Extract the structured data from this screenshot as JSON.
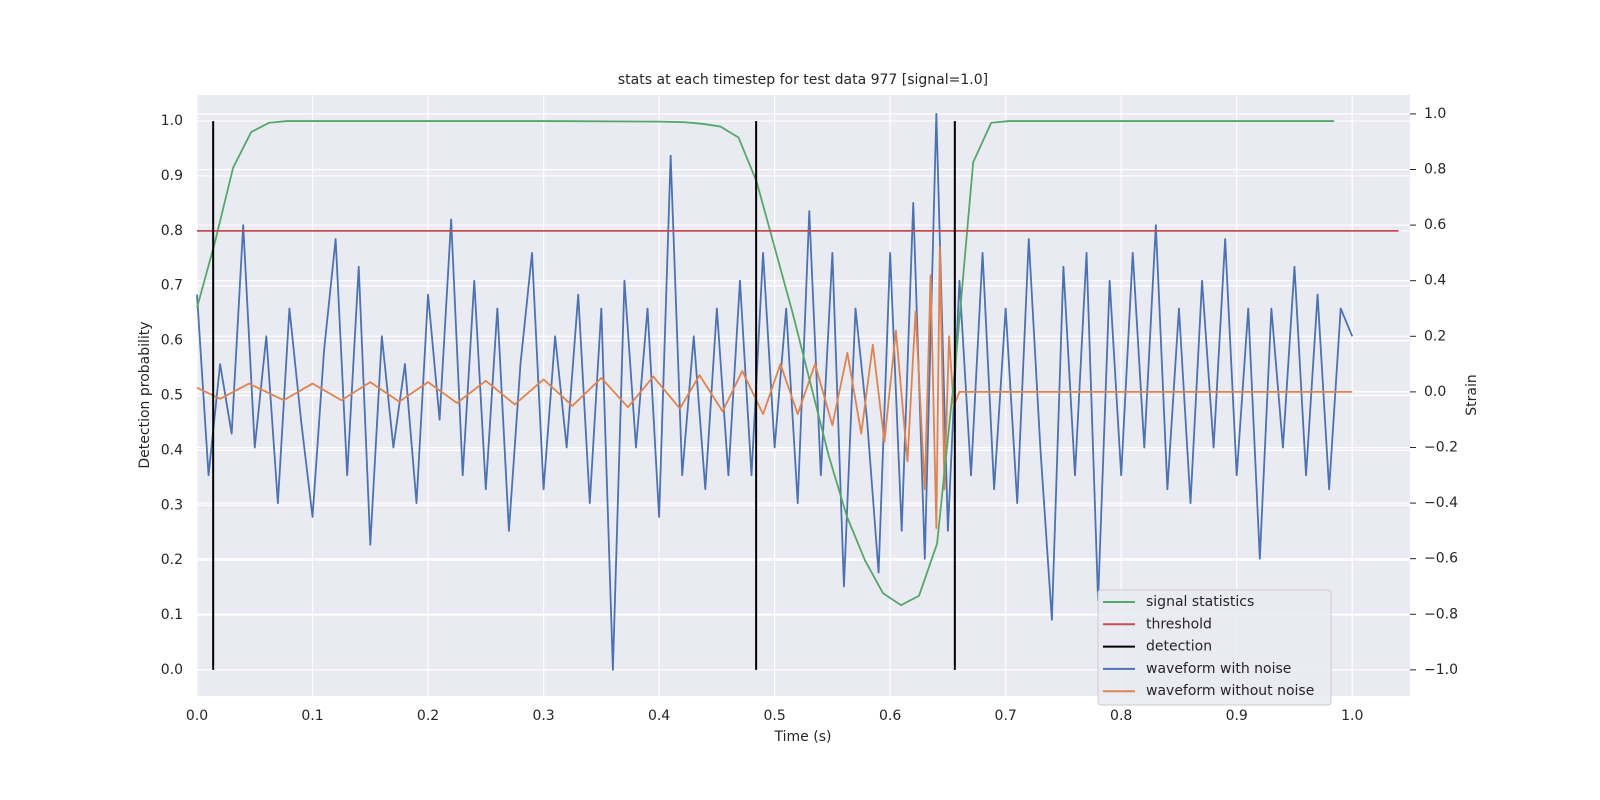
{
  "chart_data": {
    "type": "line",
    "title": "stats at each timestep for test data 977 [signal=1.0]",
    "xlabel": "Time (s)",
    "ylabel": "Detection probability",
    "y2label": "Strain",
    "xlim": [
      0,
      1.05
    ],
    "ylim": [
      -0.0475,
      1.0475
    ],
    "y2lim": [
      -1.094,
      1.068
    ],
    "xticks": [
      {
        "value": 0,
        "label": "0.0"
      },
      0.1,
      0.2,
      0.3,
      0.4,
      0.5,
      0.6,
      0.7,
      0.8,
      0.9,
      {
        "value": 1,
        "label": "1.0"
      }
    ],
    "yticks": [
      {
        "value": 0,
        "label": "0.0"
      },
      0.1,
      0.2,
      0.3,
      0.4,
      0.5,
      0.6,
      0.7,
      0.8,
      0.9,
      {
        "value": 1,
        "label": "1.0"
      }
    ],
    "y2ticks": [
      {
        "value": -1,
        "label": "−1.0"
      },
      {
        "value": -0.8,
        "label": "−0.8"
      },
      {
        "value": -0.6,
        "label": "−0.6"
      },
      {
        "value": -0.4,
        "label": "−0.4"
      },
      {
        "value": -0.2,
        "label": "−0.2"
      },
      {
        "value": 0,
        "label": "0.0"
      },
      0.2,
      0.4,
      0.6,
      0.8,
      {
        "value": 1,
        "label": "1.0"
      }
    ],
    "grid": true,
    "legend": "lower right",
    "series": [
      {
        "name": "signal statistics",
        "color": "#55a868",
        "axis": "y",
        "x": [
          0,
          0.015625,
          0.03125,
          0.046875,
          0.0625,
          0.078125,
          0.1,
          0.2,
          0.3,
          0.4,
          0.421875,
          0.4375,
          0.453125,
          0.46875,
          0.484375,
          0.5,
          0.515625,
          0.53125,
          0.546875,
          0.5625,
          0.578125,
          0.59375,
          0.609375,
          0.625,
          0.640625,
          0.65625,
          0.671875,
          0.6875,
          0.703125,
          0.8,
          0.9,
          0.984375
        ],
        "values": [
          0.66,
          0.78,
          0.915,
          0.98,
          0.997,
          1.0,
          1.0,
          1.0,
          1.0,
          0.999,
          0.998,
          0.995,
          0.99,
          0.97,
          0.89,
          0.77,
          0.65,
          0.52,
          0.39,
          0.28,
          0.2,
          0.14,
          0.118,
          0.135,
          0.23,
          0.55,
          0.925,
          0.997,
          1.0,
          1.0,
          1.0,
          1.0
        ]
      },
      {
        "name": "threshold",
        "color": "#c44e52",
        "axis": "y",
        "x": [
          0,
          1.04
        ],
        "values": [
          0.8,
          0.8
        ]
      },
      {
        "name": "detection",
        "color": "#000000",
        "axis": "y",
        "kind": "vlines",
        "x": [
          0.014,
          0.484,
          0.656
        ],
        "range": [
          0,
          1
        ]
      },
      {
        "name": "waveform with noise",
        "color": "#4c72b0",
        "axis": "y2",
        "x": [
          0,
          0.01,
          0.02,
          0.03,
          0.04,
          0.05,
          0.06,
          0.07,
          0.08,
          0.09,
          0.1,
          0.11,
          0.12,
          0.13,
          0.14,
          0.15,
          0.16,
          0.17,
          0.18,
          0.19,
          0.2,
          0.21,
          0.22,
          0.23,
          0.24,
          0.25,
          0.26,
          0.27,
          0.28,
          0.29,
          0.3,
          0.31,
          0.32,
          0.33,
          0.34,
          0.35,
          0.36,
          0.37,
          0.38,
          0.39,
          0.4,
          0.41,
          0.42,
          0.43,
          0.44,
          0.45,
          0.46,
          0.47,
          0.48,
          0.49,
          0.5,
          0.51,
          0.52,
          0.53,
          0.54,
          0.55,
          0.56,
          0.57,
          0.58,
          0.59,
          0.6,
          0.61,
          0.62,
          0.63,
          0.64,
          0.65,
          0.66,
          0.67,
          0.68,
          0.69,
          0.7,
          0.71,
          0.72,
          0.73,
          0.74,
          0.75,
          0.76,
          0.77,
          0.78,
          0.79,
          0.8,
          0.81,
          0.82,
          0.83,
          0.84,
          0.85,
          0.86,
          0.87,
          0.88,
          0.89,
          0.9,
          0.91,
          0.92,
          0.93,
          0.94,
          0.95,
          0.96,
          0.97,
          0.98,
          0.99,
          1
        ],
        "values": [
          0.35,
          -0.3,
          0.1,
          -0.15,
          0.6,
          -0.2,
          0.2,
          -0.4,
          0.3,
          -0.1,
          -0.45,
          0.15,
          0.55,
          -0.3,
          0.45,
          -0.55,
          0.2,
          -0.2,
          0.1,
          -0.4,
          0.35,
          -0.1,
          0.62,
          -0.3,
          0.4,
          -0.35,
          0.3,
          -0.5,
          0.1,
          0.5,
          -0.35,
          0.2,
          -0.2,
          0.35,
          -0.4,
          0.3,
          -1.0,
          0.4,
          -0.2,
          0.3,
          -0.45,
          0.85,
          -0.3,
          0.2,
          -0.35,
          0.3,
          -0.3,
          0.4,
          -0.3,
          0.5,
          -0.2,
          0.3,
          -0.4,
          0.65,
          -0.3,
          0.5,
          -0.7,
          0.3,
          -0.1,
          -0.65,
          0.5,
          -0.5,
          0.68,
          -0.6,
          1.0,
          -0.5,
          0.4,
          -0.3,
          0.5,
          -0.35,
          0.3,
          -0.4,
          0.55,
          -0.2,
          -0.82,
          0.45,
          -0.3,
          0.5,
          -0.75,
          0.4,
          -0.3,
          0.5,
          -0.2,
          0.6,
          -0.35,
          0.3,
          -0.4,
          0.4,
          -0.2,
          0.55,
          -0.3,
          0.3,
          -0.6,
          0.3,
          -0.2,
          0.45,
          -0.3,
          0.35,
          -0.35,
          0.3,
          0.2
        ]
      },
      {
        "name": "waveform without noise",
        "color": "#dd8452",
        "axis": "y2",
        "x": [
          0,
          0.02,
          0.045,
          0.075,
          0.1,
          0.125,
          0.15,
          0.175,
          0.2,
          0.225,
          0.25,
          0.275,
          0.3,
          0.325,
          0.35,
          0.373,
          0.395,
          0.418,
          0.435,
          0.455,
          0.472,
          0.49,
          0.505,
          0.52,
          0.535,
          0.55,
          0.563,
          0.575,
          0.585,
          0.595,
          0.605,
          0.615,
          0.622,
          0.63,
          0.635,
          0.64,
          0.643,
          0.647,
          0.651,
          0.655,
          0.66,
          1
        ],
        "values": [
          0.015,
          -0.025,
          0.03,
          -0.03,
          0.03,
          -0.03,
          0.035,
          -0.035,
          0.035,
          -0.04,
          0.04,
          -0.045,
          0.045,
          -0.05,
          0.05,
          -0.055,
          0.055,
          -0.06,
          0.06,
          -0.07,
          0.075,
          -0.08,
          0.1,
          -0.08,
          0.1,
          -0.12,
          0.14,
          -0.15,
          0.17,
          -0.18,
          0.22,
          -0.25,
          0.29,
          -0.35,
          0.42,
          -0.49,
          0.52,
          -0.35,
          0.2,
          -0.05,
          0.0,
          0.0
        ]
      }
    ]
  }
}
